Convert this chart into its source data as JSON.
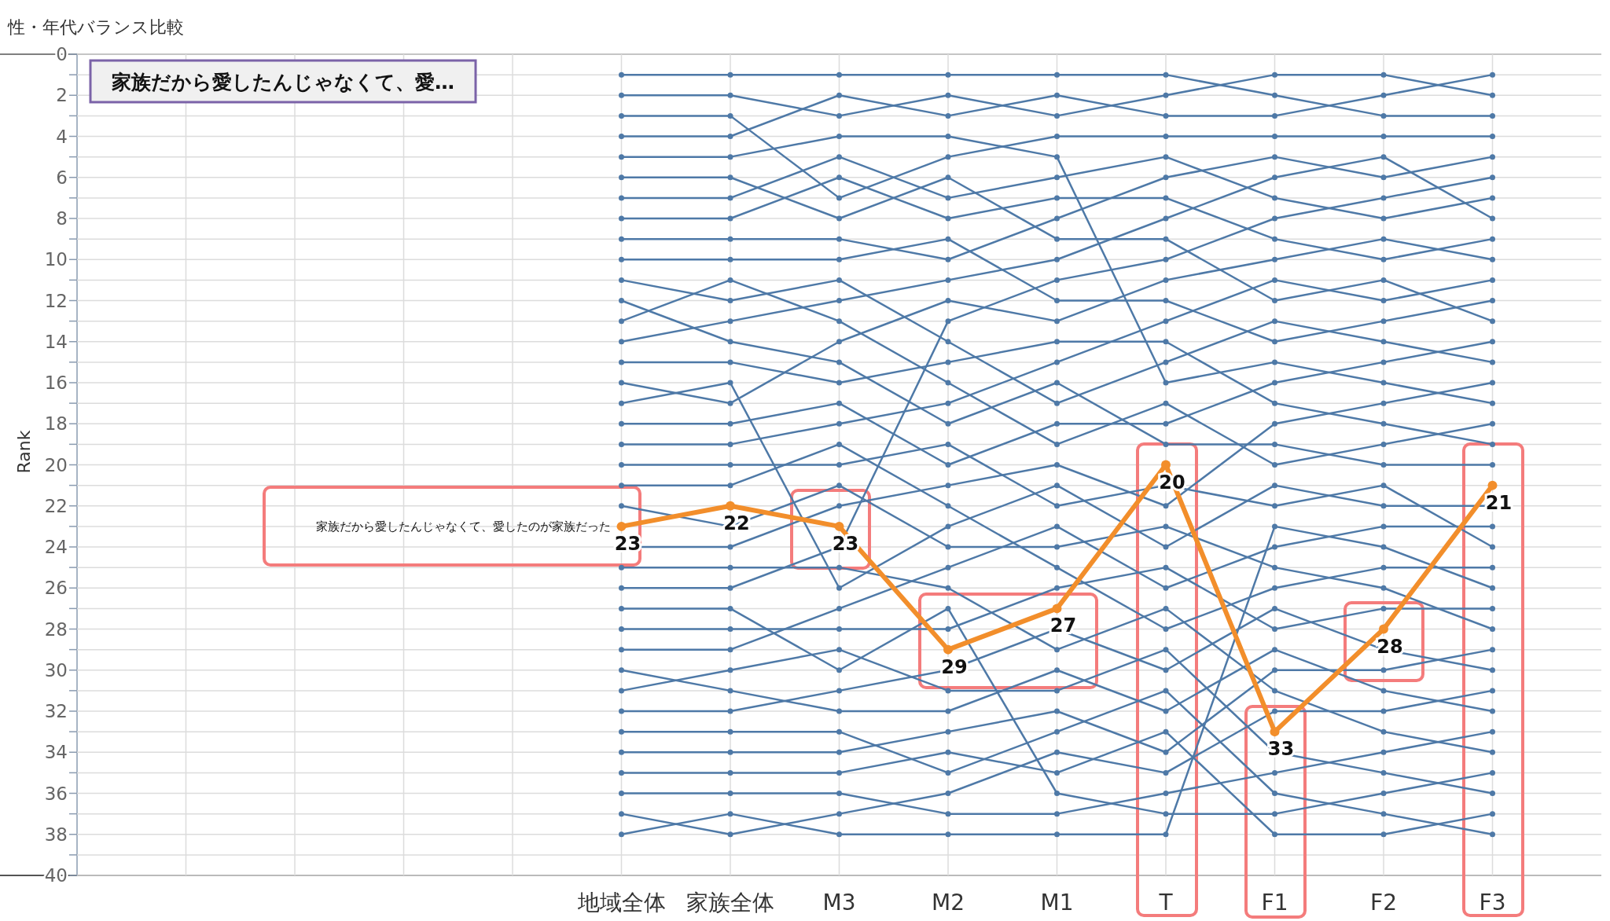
{
  "chart_data": {
    "type": "line",
    "title": "性・年代バランス比較",
    "subtitle": "家族だから愛したんじゃなくて、愛…",
    "ylabel": "Rank",
    "categories": [
      null,
      null,
      null,
      null,
      "地域全体",
      "家族全体",
      "M3",
      "M2",
      "M1",
      "T",
      "F1",
      "F2",
      "F3"
    ],
    "ylim": [
      40,
      0
    ],
    "yticks": [
      0,
      {
        "value": 1,
        "label": null
      },
      2,
      {
        "value": 3,
        "label": null
      },
      4,
      {
        "value": 5,
        "label": null
      },
      6,
      {
        "value": 7,
        "label": null
      },
      8,
      {
        "value": 9,
        "label": null
      },
      10,
      {
        "value": 11,
        "label": null
      },
      12,
      {
        "value": 13,
        "label": null
      },
      14,
      {
        "value": 15,
        "label": null
      },
      16,
      {
        "value": 17,
        "label": null
      },
      18,
      {
        "value": 19,
        "label": null
      },
      20,
      {
        "value": 21,
        "label": null
      },
      22,
      {
        "value": 23,
        "label": null
      },
      24,
      {
        "value": 25,
        "label": null
      },
      26,
      {
        "value": 27,
        "label": null
      },
      28,
      {
        "value": 29,
        "label": null
      },
      30,
      {
        "value": 31,
        "label": null
      },
      32,
      {
        "value": 33,
        "label": null
      },
      34,
      {
        "value": 35,
        "label": null
      },
      36,
      {
        "value": 37,
        "label": null
      },
      38,
      {
        "value": 39,
        "label": null
      },
      40
    ],
    "grid": true,
    "marker": "circle",
    "line_style": "solid",
    "series": [
      {
        "color": "#4e79a7",
        "values": [
          null,
          null,
          null,
          null,
          1,
          1,
          1,
          1,
          1,
          1,
          2,
          3,
          3
        ]
      },
      {
        "color": "#4e79a7",
        "values": [
          null,
          null,
          null,
          null,
          2,
          2,
          3,
          2,
          3,
          2,
          1,
          1,
          2
        ]
      },
      {
        "color": "#4e79a7",
        "values": [
          null,
          null,
          null,
          null,
          3,
          3,
          7,
          5,
          4,
          4,
          4,
          4,
          4
        ]
      },
      {
        "color": "#4e79a7",
        "values": [
          null,
          null,
          null,
          null,
          4,
          4,
          2,
          3,
          2,
          3,
          3,
          2,
          1
        ]
      },
      {
        "color": "#4e79a7",
        "values": [
          null,
          null,
          null,
          null,
          5,
          5,
          4,
          4,
          5,
          16,
          15,
          16,
          17
        ]
      },
      {
        "color": "#4e79a7",
        "values": [
          null,
          null,
          null,
          null,
          6,
          6,
          8,
          6,
          9,
          9,
          12,
          11,
          13
        ]
      },
      {
        "color": "#4e79a7",
        "values": [
          null,
          null,
          null,
          null,
          7,
          7,
          5,
          7,
          6,
          5,
          7,
          8,
          7
        ]
      },
      {
        "color": "#4e79a7",
        "values": [
          null,
          null,
          null,
          null,
          8,
          8,
          6,
          8,
          7,
          7,
          9,
          10,
          9
        ]
      },
      {
        "color": "#4e79a7",
        "values": [
          null,
          null,
          null,
          null,
          9,
          9,
          9,
          10,
          8,
          6,
          5,
          6,
          5
        ]
      },
      {
        "color": "#4e79a7",
        "values": [
          null,
          null,
          null,
          null,
          10,
          10,
          10,
          9,
          12,
          12,
          14,
          13,
          12
        ]
      },
      {
        "color": "#4e79a7",
        "values": [
          null,
          null,
          null,
          null,
          11,
          12,
          11,
          14,
          17,
          15,
          13,
          14,
          15
        ]
      },
      {
        "color": "#4e79a7",
        "values": [
          null,
          null,
          null,
          null,
          12,
          14,
          15,
          18,
          16,
          19,
          19,
          20,
          20
        ]
      },
      {
        "color": "#4e79a7",
        "values": [
          null,
          null,
          null,
          null,
          13,
          11,
          13,
          16,
          19,
          17,
          20,
          19,
          18
        ]
      },
      {
        "color": "#4e79a7",
        "values": [
          null,
          null,
          null,
          null,
          14,
          13,
          12,
          11,
          10,
          8,
          6,
          5,
          8
        ]
      },
      {
        "color": "#4e79a7",
        "values": [
          null,
          null,
          null,
          null,
          15,
          15,
          16,
          15,
          14,
          14,
          17,
          18,
          19
        ]
      },
      {
        "color": "#4e79a7",
        "values": [
          null,
          null,
          null,
          null,
          16,
          17,
          14,
          12,
          13,
          11,
          10,
          9,
          10
        ]
      },
      {
        "color": "#4e79a7",
        "values": [
          null,
          null,
          null,
          null,
          17,
          16,
          26,
          23,
          21,
          24,
          21,
          22,
          22
        ]
      },
      {
        "color": "#4e79a7",
        "values": [
          null,
          null,
          null,
          null,
          18,
          18,
          17,
          20,
          18,
          18,
          16,
          15,
          14
        ]
      },
      {
        "color": "#4e79a7",
        "values": [
          null,
          null,
          null,
          null,
          19,
          19,
          18,
          17,
          15,
          13,
          11,
          12,
          11
        ]
      },
      {
        "color": "#4e79a7",
        "values": [
          null,
          null,
          null,
          null,
          20,
          20,
          20,
          19,
          22,
          21,
          22,
          21,
          24
        ]
      },
      {
        "color": "#4e79a7",
        "values": [
          null,
          null,
          null,
          null,
          21,
          21,
          19,
          22,
          25,
          28,
          26,
          25,
          25
        ]
      },
      {
        "color": "#4e79a7",
        "values": [
          null,
          null,
          null,
          null,
          22,
          23,
          21,
          24,
          24,
          23,
          25,
          26,
          28
        ]
      },
      {
        "color": "#4e79a7",
        "values": [
          null,
          null,
          null,
          null,
          24,
          24,
          22,
          21,
          20,
          22,
          18,
          17,
          16
        ]
      },
      {
        "color": "#4e79a7",
        "values": [
          null,
          null,
          null,
          null,
          25,
          25,
          25,
          26,
          29,
          27,
          31,
          33,
          34
        ]
      },
      {
        "color": "#4e79a7",
        "values": [
          null,
          null,
          null,
          null,
          26,
          26,
          24,
          13,
          11,
          10,
          8,
          7,
          6
        ]
      },
      {
        "color": "#4e79a7",
        "values": [
          null,
          null,
          null,
          null,
          27,
          27,
          30,
          27,
          36,
          37,
          37,
          36,
          35
        ]
      },
      {
        "color": "#4e79a7",
        "values": [
          null,
          null,
          null,
          null,
          28,
          28,
          28,
          28,
          26,
          25,
          28,
          27,
          27
        ]
      },
      {
        "color": "#4e79a7",
        "values": [
          null,
          null,
          null,
          null,
          29,
          29,
          27,
          25,
          23,
          26,
          24,
          23,
          23
        ]
      },
      {
        "color": "#4e79a7",
        "values": [
          null,
          null,
          null,
          null,
          30,
          31,
          32,
          32,
          30,
          32,
          29,
          31,
          32
        ]
      },
      {
        "color": "#4e79a7",
        "values": [
          null,
          null,
          null,
          null,
          31,
          30,
          29,
          31,
          31,
          29,
          34,
          35,
          36
        ]
      },
      {
        "color": "#4e79a7",
        "values": [
          null,
          null,
          null,
          null,
          32,
          32,
          31,
          30,
          28,
          30,
          27,
          29,
          30
        ]
      },
      {
        "color": "#4e79a7",
        "values": [
          null,
          null,
          null,
          null,
          33,
          33,
          33,
          35,
          33,
          31,
          36,
          37,
          38
        ]
      },
      {
        "color": "#4e79a7",
        "values": [
          null,
          null,
          null,
          null,
          34,
          34,
          34,
          33,
          32,
          34,
          30,
          30,
          29
        ]
      },
      {
        "color": "#4e79a7",
        "values": [
          null,
          null,
          null,
          null,
          35,
          35,
          35,
          34,
          35,
          33,
          38,
          38,
          37
        ]
      },
      {
        "color": "#4e79a7",
        "values": [
          null,
          null,
          null,
          null,
          36,
          36,
          36,
          37,
          37,
          36,
          35,
          34,
          33
        ]
      },
      {
        "color": "#4e79a7",
        "values": [
          null,
          null,
          null,
          null,
          37,
          38,
          37,
          36,
          34,
          35,
          32,
          32,
          31
        ]
      },
      {
        "color": "#4e79a7",
        "values": [
          null,
          null,
          null,
          null,
          38,
          37,
          38,
          38,
          38,
          38,
          23,
          24,
          26
        ]
      },
      {
        "name": "家族だから愛したんじゃなくて、愛したのが家族だった",
        "color": "#f28e2b",
        "values": [
          null,
          null,
          null,
          null,
          23,
          22,
          23,
          29,
          27,
          20,
          33,
          28,
          21
        ],
        "value_labels": [
          null,
          null,
          null,
          null,
          "23",
          "22",
          "23",
          "29",
          "27",
          "20",
          "33",
          "28",
          "21"
        ]
      }
    ]
  }
}
